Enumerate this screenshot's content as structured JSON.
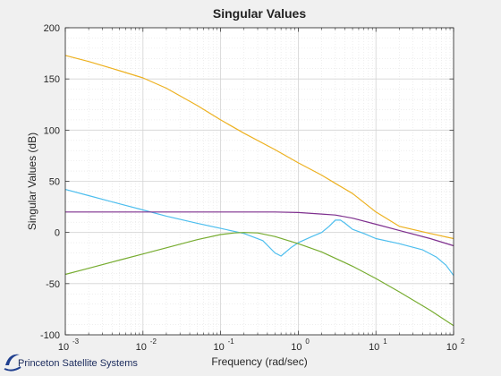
{
  "logo": {
    "text": "Princeton Satellite Systems"
  },
  "chart_data": {
    "type": "line",
    "title": "Singular Values",
    "xlabel": "Frequency (rad/sec)",
    "ylabel": "Singular Values (dB)",
    "xscale": "log",
    "xlim": [
      0.001,
      100
    ],
    "ylim": [
      -100,
      200
    ],
    "grid": "major and minor (dotted)",
    "legend": "none",
    "x_tick_labels": [
      {
        "base": "10",
        "exp": "-3",
        "value": 0.001
      },
      {
        "base": "10",
        "exp": "-2",
        "value": 0.01
      },
      {
        "base": "10",
        "exp": "-1",
        "value": 0.1
      },
      {
        "base": "10",
        "exp": "0",
        "value": 1
      },
      {
        "base": "10",
        "exp": "1",
        "value": 10
      },
      {
        "base": "10",
        "exp": "2",
        "value": 100
      }
    ],
    "y_tick_labels": [
      "-100",
      "-50",
      "0",
      "50",
      "100",
      "150",
      "200"
    ],
    "y_tick_values": [
      -100,
      -50,
      0,
      50,
      100,
      150,
      200
    ],
    "series": [
      {
        "color": "#EDB120",
        "x": [
          0.001,
          0.002,
          0.005,
          0.01,
          0.02,
          0.05,
          0.1,
          0.2,
          0.5,
          1,
          2,
          3,
          5,
          10,
          20,
          50,
          100
        ],
        "y": [
          173,
          167,
          158,
          151,
          141,
          124,
          110,
          97,
          81,
          68,
          56,
          48,
          38,
          20,
          6,
          -1,
          -6
        ]
      },
      {
        "color": "#4DBEEE",
        "x": [
          0.001,
          0.002,
          0.005,
          0.01,
          0.02,
          0.05,
          0.1,
          0.2,
          0.35,
          0.5,
          0.6,
          0.8,
          1,
          1.5,
          2,
          2.5,
          3,
          3.5,
          4,
          5,
          7,
          10,
          20,
          40,
          60,
          80,
          100
        ],
        "y": [
          42,
          36,
          28,
          22,
          16,
          9,
          4,
          -1,
          -8,
          -20,
          -23,
          -15,
          -10,
          -4,
          0,
          6,
          12,
          12,
          9,
          3,
          -1,
          -6,
          -11,
          -17,
          -24,
          -32,
          -42
        ]
      },
      {
        "color": "#7E2F8E",
        "x": [
          0.001,
          0.01,
          0.1,
          0.5,
          1,
          2,
          3,
          5,
          10,
          20,
          50,
          100
        ],
        "y": [
          20,
          20,
          20,
          20,
          19.5,
          18,
          17,
          14,
          8,
          2,
          -6,
          -13
        ]
      },
      {
        "color": "#77AC30",
        "x": [
          0.001,
          0.002,
          0.005,
          0.01,
          0.02,
          0.05,
          0.1,
          0.15,
          0.2,
          0.3,
          0.5,
          1,
          2,
          5,
          10,
          20,
          50,
          100
        ],
        "y": [
          -41,
          -35,
          -27,
          -21,
          -15,
          -7,
          -2,
          -0.5,
          0,
          -0.5,
          -4,
          -11,
          -19,
          -33,
          -45,
          -58,
          -76,
          -91
        ]
      }
    ]
  }
}
